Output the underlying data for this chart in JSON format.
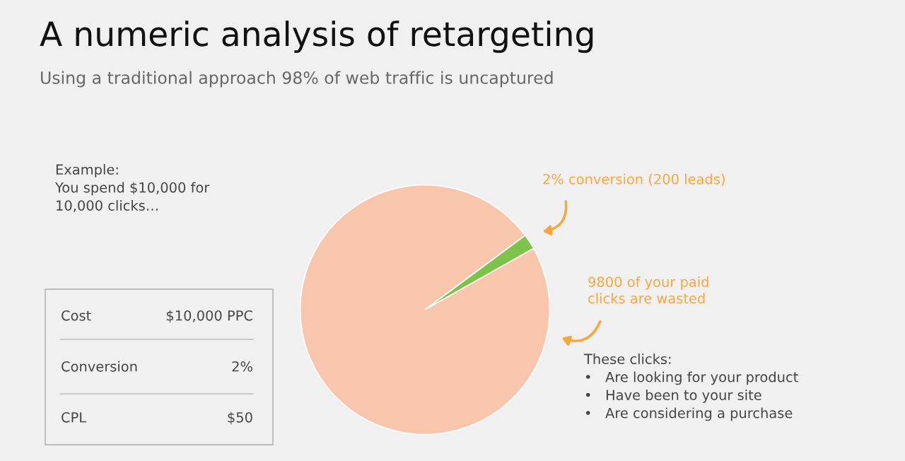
{
  "chart_data": {
    "type": "pie",
    "title": "A numeric analysis of retargeting",
    "subtitle": "Using a traditional approach 98% of web traffic is uncaptured",
    "categories": [
      null,
      null
    ],
    "values": [
      2,
      98
    ],
    "colors": [
      "#7dc24b",
      "#f8c5ad"
    ],
    "annotations": [
      "Example:\nYou spend $10,000 for\n10,000 clicks…",
      "2% conversion (200 leads)",
      "9800 of your paid\nclicks are wasted",
      "These clicks:\n•   Are looking for your product\n•   Have been to your site\n•   Are considering a purchase",
      "Cost",
      "$10,000 PPC",
      "Conversion",
      "2%",
      "CPL",
      "$50"
    ]
  }
}
